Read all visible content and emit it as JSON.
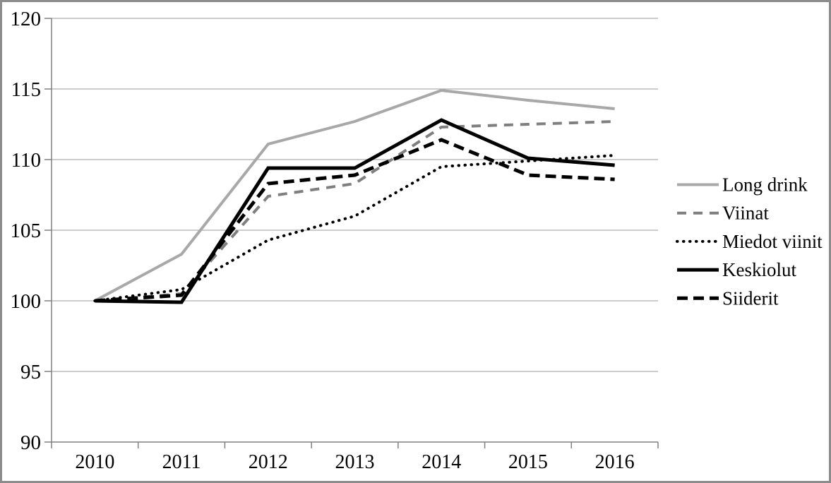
{
  "chart_data": {
    "type": "line",
    "title": "",
    "xlabel": "",
    "ylabel": "",
    "categories": [
      "2010",
      "2011",
      "2012",
      "2013",
      "2014",
      "2015",
      "2016"
    ],
    "series": [
      {
        "name": "Long drink",
        "values": [
          100,
          103.3,
          111.1,
          112.7,
          114.9,
          114.2,
          113.6
        ],
        "color": "#a8a8a8",
        "width": 4,
        "dash": "none",
        "cap": "butt"
      },
      {
        "name": "Viinat",
        "values": [
          100,
          100.5,
          107.4,
          108.3,
          112.3,
          112.5,
          112.7
        ],
        "color": "#7f7f7f",
        "width": 4,
        "dash": "13 10",
        "cap": "butt"
      },
      {
        "name": "Miedot viinit",
        "values": [
          100,
          100.8,
          104.3,
          106.0,
          109.5,
          109.9,
          110.3
        ],
        "color": "#000000",
        "width": 4,
        "dash": "0.5 8.5",
        "cap": "round"
      },
      {
        "name": "Keskiolut",
        "values": [
          100,
          99.9,
          109.4,
          109.4,
          112.8,
          110.1,
          109.6
        ],
        "color": "#000000",
        "width": 5,
        "dash": "none",
        "cap": "butt"
      },
      {
        "name": "Siiderit",
        "values": [
          100,
          100.4,
          108.3,
          108.9,
          111.4,
          108.9,
          108.6
        ],
        "color": "#000000",
        "width": 5,
        "dash": "15 8",
        "cap": "butt"
      }
    ],
    "ylim": [
      90,
      120
    ],
    "yticks": [
      90,
      95,
      100,
      105,
      110,
      115,
      120
    ],
    "grid": true,
    "legend_position": "right"
  },
  "style": {
    "frame_border_color": "#8c8c8c",
    "axis_color": "#808080",
    "grid_color": "#9a9a9a",
    "label_color": "#000000"
  }
}
